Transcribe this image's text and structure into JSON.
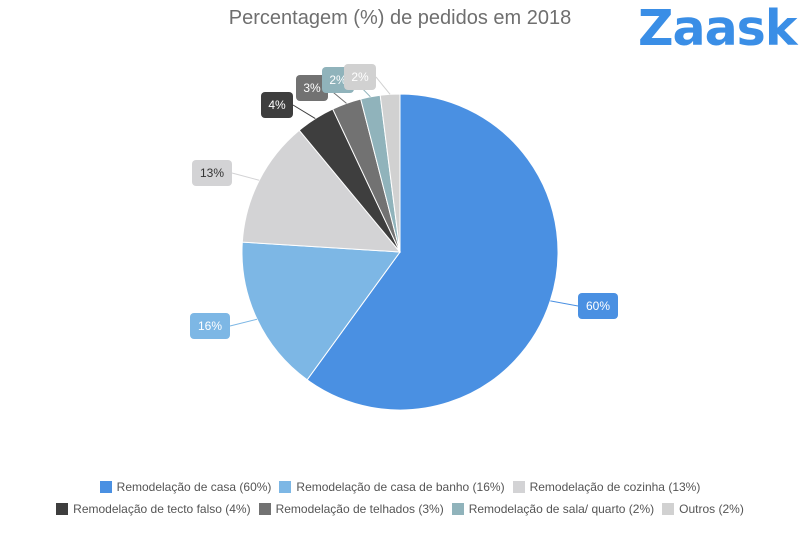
{
  "brand": {
    "name": "Zaask"
  },
  "chart_data": {
    "type": "pie",
    "title": "Percentagem (%) de pedidos em 2018",
    "legend_position": "bottom",
    "slices": [
      {
        "label": "Remodelação de casa (60%)",
        "value": 60,
        "data_label": "60%",
        "color": "#4a90e2"
      },
      {
        "label": "Remodelação de casa de banho (16%)",
        "value": 16,
        "data_label": "16%",
        "color": "#7db7e5"
      },
      {
        "label": "Remodelação de cozinha (13%)",
        "value": 13,
        "data_label": "13%",
        "color": "#d3d3d5"
      },
      {
        "label": "Remodelação de tecto falso (4%)",
        "value": 4,
        "data_label": "4%",
        "color": "#3e3e3e"
      },
      {
        "label": "Remodelação de telhados (3%)",
        "value": 3,
        "data_label": "3%",
        "color": "#727272"
      },
      {
        "label": "Remodelação de sala/ quarto (2%)",
        "value": 2,
        "data_label": "2%",
        "color": "#90b3bb"
      },
      {
        "label": "Outros (2%)",
        "value": 2,
        "data_label": "2%",
        "color": "#d1d1d1"
      }
    ]
  }
}
